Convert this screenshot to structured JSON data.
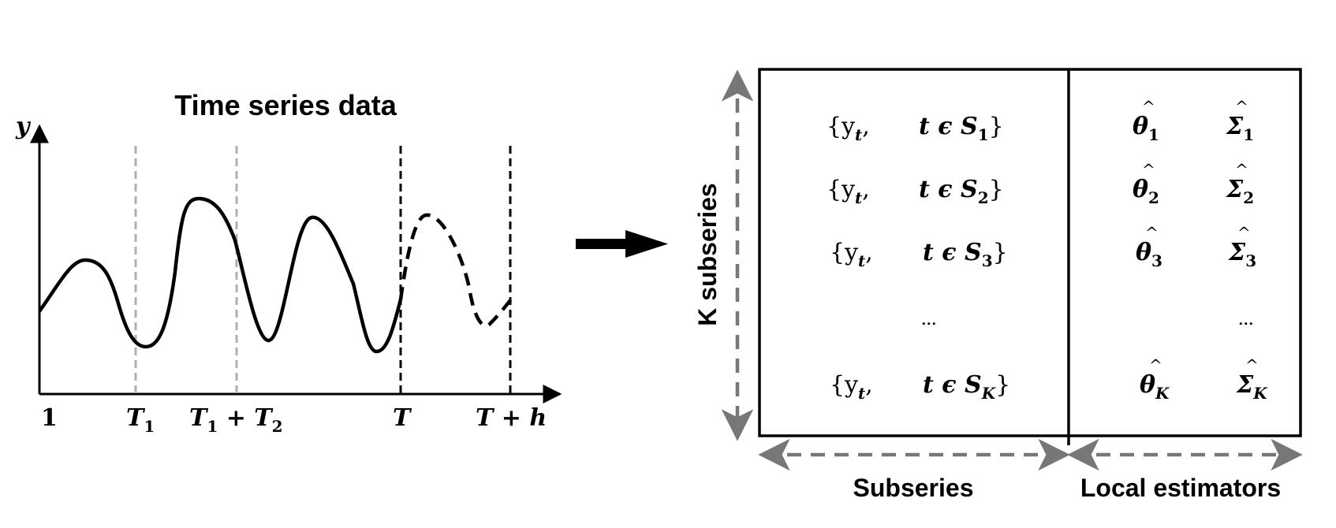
{
  "left_panel": {
    "title": "Time series data",
    "y_axis_label": "y",
    "x_ticks": [
      {
        "main": "1",
        "sub": ""
      },
      {
        "main": "T",
        "sub": "1"
      },
      {
        "main": "T",
        "sub": "1",
        "rest": " + T",
        "rest_sub": "2"
      },
      {
        "main": "T",
        "sub": ""
      },
      {
        "main": "T + h",
        "sub": ""
      }
    ]
  },
  "right_panel": {
    "vertical_label": "K subseries",
    "bottom_left_label": "Subseries",
    "bottom_right_label": "Local estimators",
    "rows": [
      {
        "set_open": "{y",
        "set_open_sub": "t",
        "comma": ",",
        "membership": "t ϵ S",
        "membership_sub": "1",
        "set_close": "}",
        "theta": "θ",
        "theta_sub": "1",
        "sigma": "Σ",
        "sigma_sub": "1"
      },
      {
        "set_open": "{y",
        "set_open_sub": "t",
        "comma": ",",
        "membership": "t ϵ S",
        "membership_sub": "2",
        "set_close": "}",
        "theta": "θ",
        "theta_sub": "2",
        "sigma": "Σ",
        "sigma_sub": "2"
      },
      {
        "set_open": "{y",
        "set_open_sub": "t",
        "comma": ",",
        "membership": "t ϵ S",
        "membership_sub": "3",
        "set_close": "}",
        "theta": "θ",
        "theta_sub": "3",
        "sigma": "Σ",
        "sigma_sub": "3"
      },
      {
        "set_open": "{y",
        "set_open_sub": "t",
        "comma": ",",
        "membership": "t ϵ S",
        "membership_sub": "K",
        "set_close": "}",
        "theta": "θ",
        "theta_sub": "K",
        "sigma": "Σ",
        "sigma_sub": "K"
      }
    ],
    "ellipsis_left": "...",
    "ellipsis_right": "..."
  },
  "colors": {
    "line": "#000000",
    "grey_dash": "#b0b0b0",
    "arrow_grey": "#777777"
  }
}
